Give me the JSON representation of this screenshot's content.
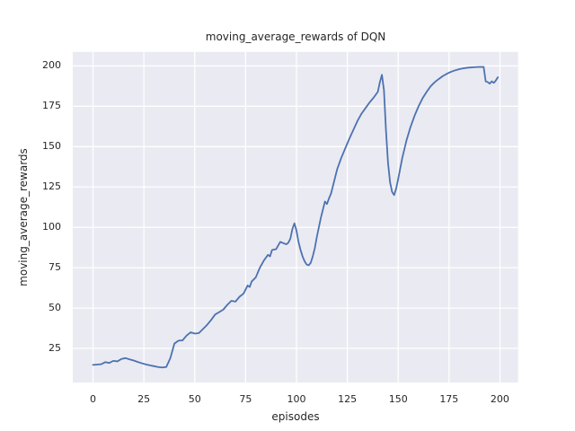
{
  "chart_data": {
    "type": "line",
    "title": "moving_average_rewards of DQN",
    "xlabel": "episodes",
    "ylabel": "moving_average_rewards",
    "x_ticks": [
      0,
      25,
      50,
      75,
      100,
      125,
      150,
      175,
      200
    ],
    "y_ticks": [
      25,
      50,
      75,
      100,
      125,
      150,
      175,
      200
    ],
    "xlim": [
      -9.95,
      208.95
    ],
    "ylim": [
      3.88,
      208.71
    ],
    "grid": true,
    "legend": null,
    "colors": {
      "line": "#4c72b0",
      "axes_background": "#eaeaf2",
      "grid": "#ffffff",
      "text": "#262626",
      "figure_background": "#ffffff"
    },
    "series": [
      {
        "name": "moving_average_rewards",
        "x": [
          0,
          2,
          4,
          6,
          8,
          10,
          12,
          14,
          16,
          18,
          20,
          22,
          24,
          26,
          28,
          30,
          32,
          34,
          36,
          38,
          40,
          42,
          44,
          46,
          48,
          50,
          52,
          54,
          56,
          58,
          60,
          62,
          64,
          66,
          68,
          70,
          72,
          74,
          76,
          77,
          78,
          80,
          82,
          84,
          86,
          87,
          88,
          90,
          92,
          94,
          95,
          96,
          97,
          98,
          99,
          100,
          101,
          102,
          103,
          104,
          105,
          106,
          107,
          108,
          109,
          110,
          111,
          112,
          113,
          114,
          115,
          116,
          117,
          118,
          120,
          122,
          124,
          126,
          128,
          130,
          132,
          134,
          136,
          138,
          140,
          141,
          142,
          143,
          144,
          145,
          146,
          147,
          148,
          149,
          150,
          152,
          154,
          156,
          158,
          160,
          162,
          164,
          166,
          168,
          170,
          172,
          174,
          176,
          178,
          180,
          182,
          184,
          186,
          188,
          190,
          192,
          193,
          194,
          195,
          196,
          197,
          198,
          199
        ],
        "y": [
          14.8,
          15.0,
          15.2,
          16.5,
          16.0,
          17.3,
          17.0,
          18.5,
          19.0,
          18.2,
          17.5,
          16.6,
          15.8,
          15.1,
          14.5,
          14.0,
          13.5,
          13.2,
          13.5,
          19.0,
          28.0,
          29.8,
          30.0,
          33.0,
          35.0,
          34.2,
          34.5,
          37.0,
          39.5,
          42.5,
          46.0,
          47.5,
          49.0,
          52.0,
          54.5,
          54.0,
          57.0,
          59.0,
          64.0,
          63.0,
          66.5,
          69.0,
          75.0,
          79.5,
          83.0,
          82.0,
          86.0,
          86.5,
          91.0,
          90.0,
          89.5,
          90.5,
          93.0,
          99.0,
          102.5,
          98.0,
          91.0,
          86.0,
          82.0,
          79.0,
          77.0,
          76.5,
          78.0,
          82.0,
          87.0,
          94.0,
          100.0,
          106.0,
          111.0,
          116.0,
          114.5,
          118.0,
          121.0,
          126.0,
          136.0,
          143.0,
          149.0,
          155.0,
          160.5,
          166.0,
          170.5,
          174.0,
          177.5,
          180.5,
          184.0,
          190.0,
          194.5,
          185.0,
          160.0,
          140.0,
          128.0,
          122.0,
          120.0,
          124.0,
          130.0,
          143.0,
          153.5,
          162.0,
          169.0,
          175.0,
          180.0,
          184.0,
          187.5,
          190.0,
          192.0,
          193.8,
          195.2,
          196.4,
          197.3,
          198.0,
          198.5,
          198.9,
          199.1,
          199.3,
          199.4,
          199.4,
          190.5,
          190.0,
          189.0,
          190.5,
          189.5,
          191.0,
          193.0
        ]
      }
    ]
  }
}
